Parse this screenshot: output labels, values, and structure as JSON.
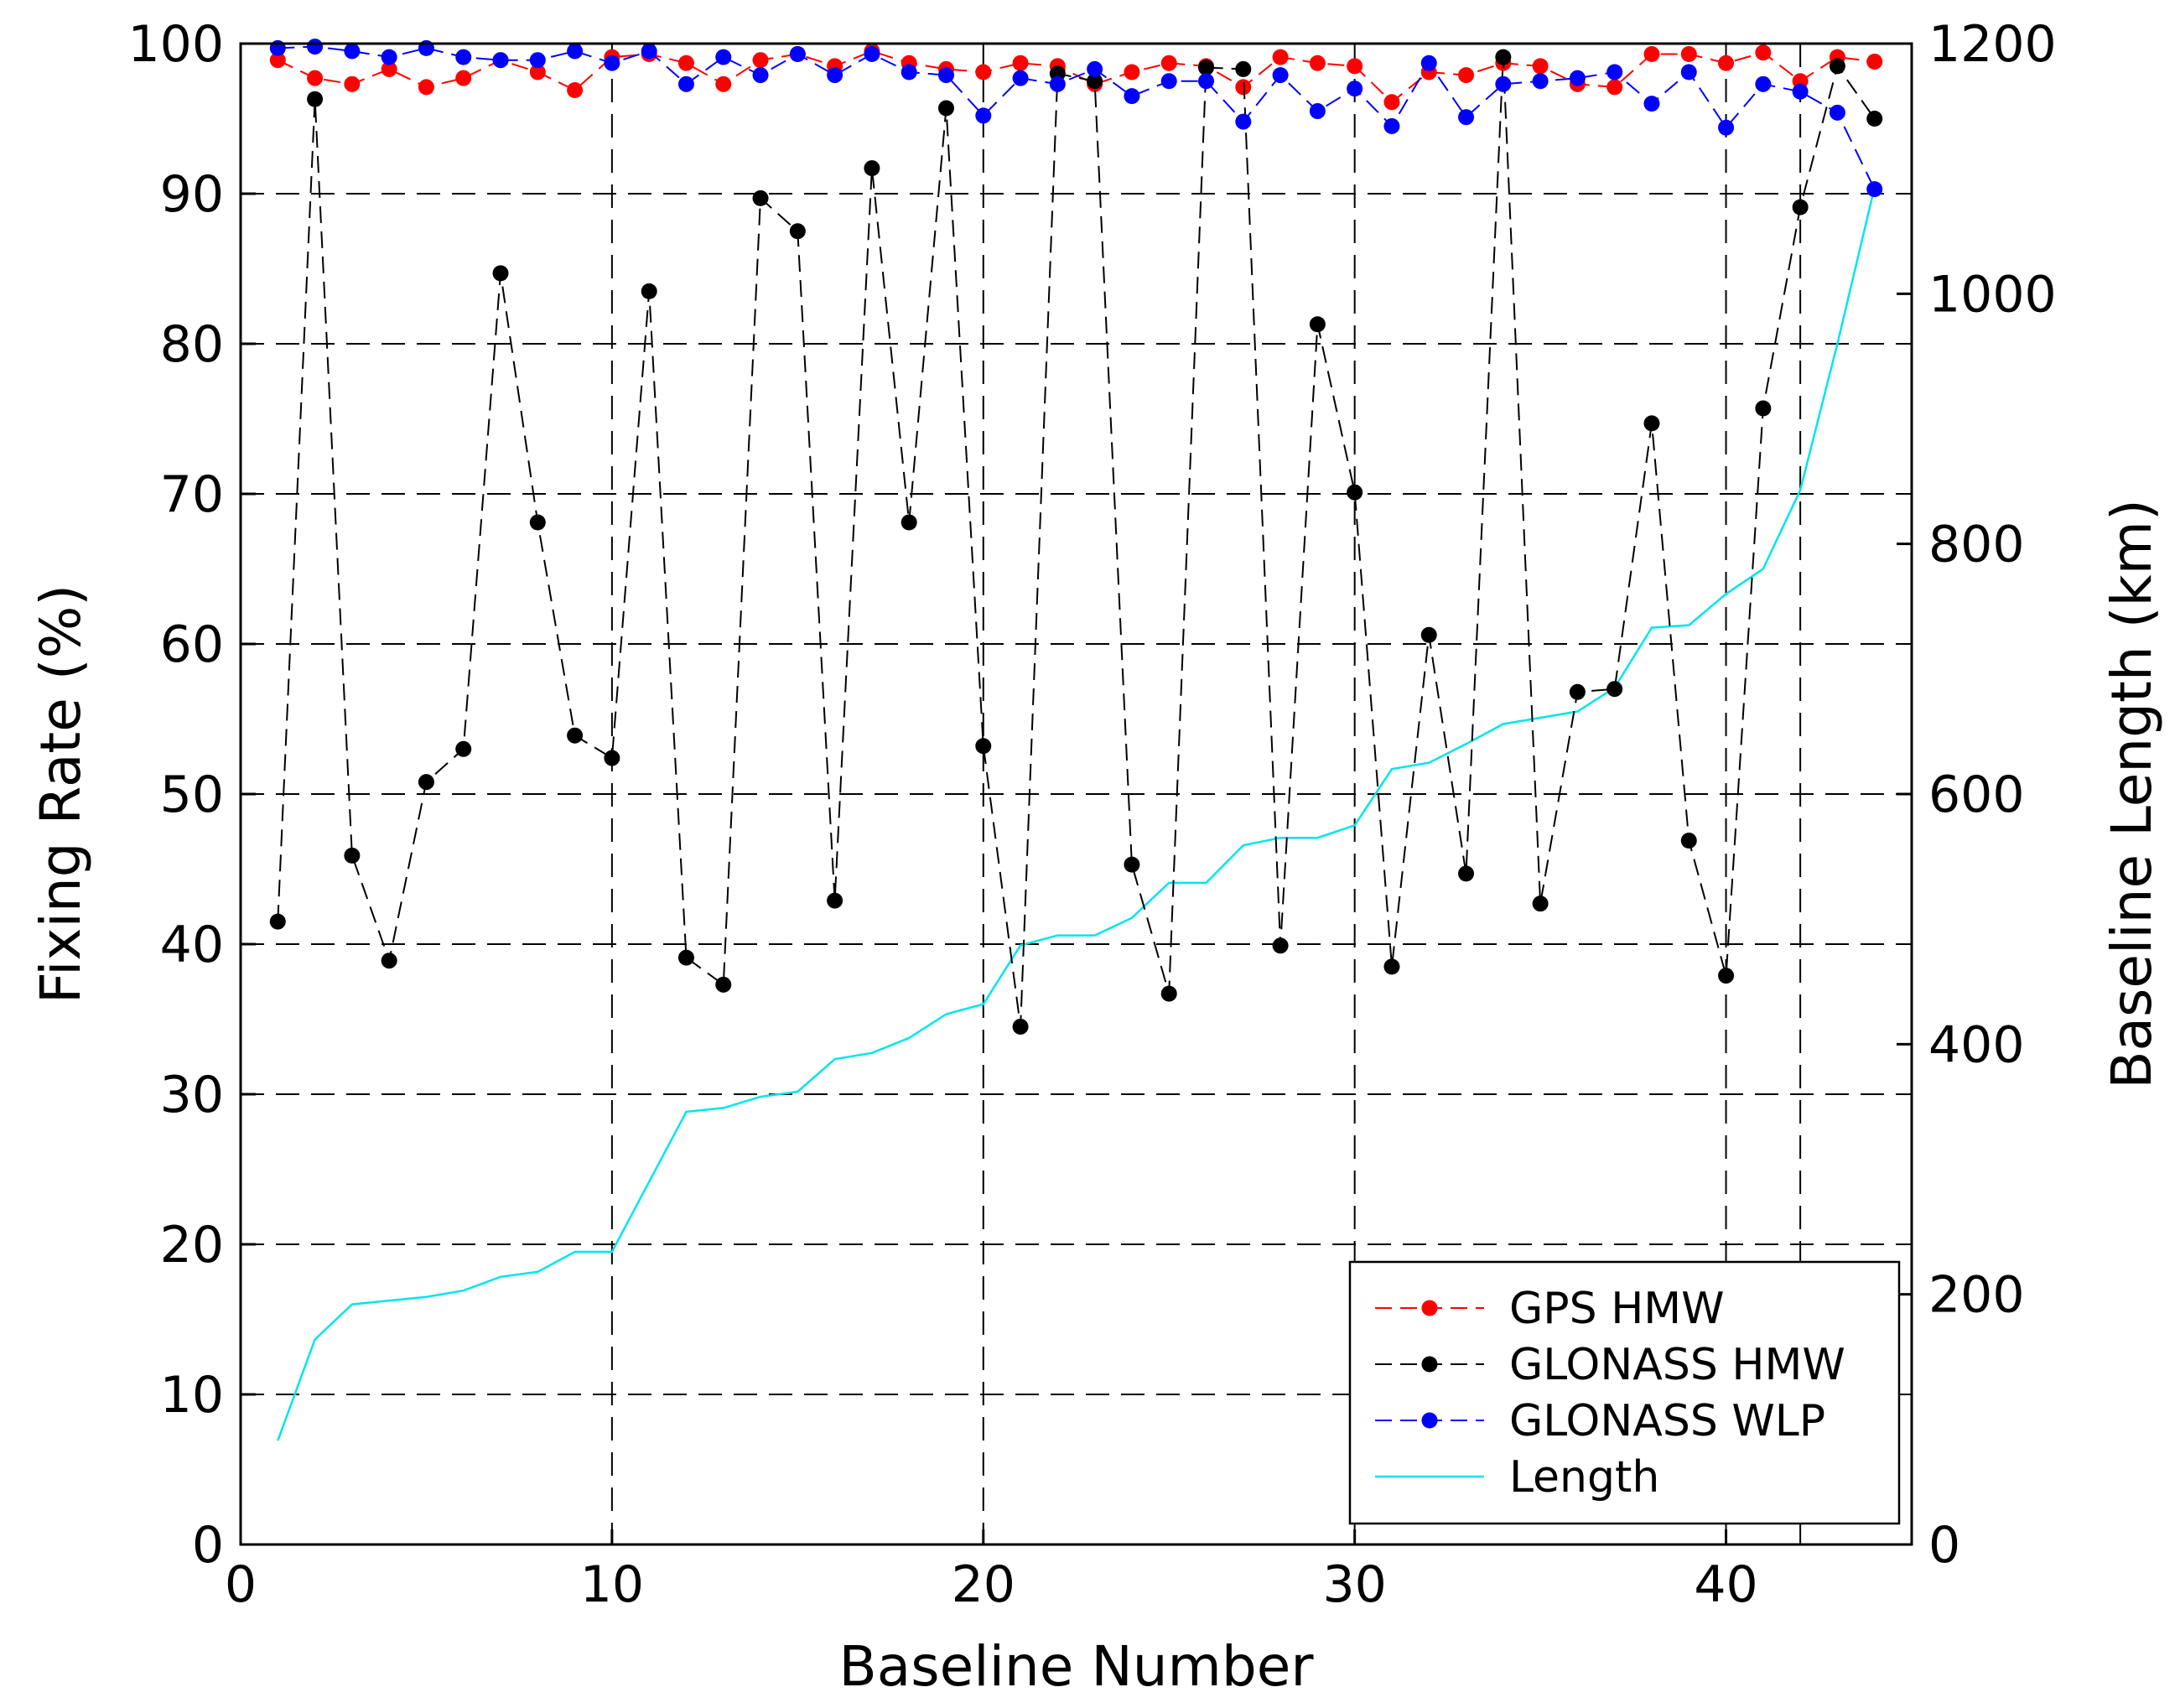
{
  "chart_data": {
    "type": "line",
    "title": "",
    "xlabel": "Baseline Number",
    "ylabel": "Fixing Rate (%)",
    "y2label": "Baseline Length (km)",
    "xlim": [
      0,
      45
    ],
    "ylim": [
      0,
      100
    ],
    "y2lim": [
      0,
      1200
    ],
    "xticks": [
      0,
      10,
      20,
      30,
      40
    ],
    "yticks": [
      0,
      10,
      20,
      30,
      40,
      50,
      60,
      70,
      80,
      90,
      100
    ],
    "y2ticks": [
      0,
      200,
      400,
      600,
      800,
      1000,
      1200
    ],
    "vertical_gridlines_at": [
      10,
      20,
      30,
      40,
      42
    ],
    "horizontal_grid": true,
    "legend_position": "bottom-right",
    "x": [
      1,
      2,
      3,
      4,
      5,
      6,
      7,
      8,
      9,
      10,
      11,
      12,
      13,
      14,
      15,
      16,
      17,
      18,
      19,
      20,
      21,
      22,
      23,
      24,
      25,
      26,
      27,
      28,
      29,
      30,
      31,
      32,
      33,
      34,
      35,
      36,
      37,
      38,
      39,
      40,
      41,
      42,
      43,
      44
    ],
    "series": [
      {
        "name": "GPS HMW",
        "axis": "left",
        "color": "#ff0000",
        "style": "dashed-marker",
        "values": [
          98.9,
          97.7,
          97.3,
          98.3,
          97.1,
          97.7,
          98.9,
          98.1,
          96.9,
          99.1,
          99.3,
          98.7,
          97.3,
          98.9,
          99.3,
          98.5,
          99.5,
          98.7,
          98.3,
          98.1,
          98.7,
          98.5,
          97.3,
          98.1,
          98.7,
          98.5,
          97.1,
          99.1,
          98.7,
          98.5,
          96.1,
          98.1,
          97.9,
          98.7,
          98.5,
          97.3,
          97.1,
          99.3,
          99.3,
          98.7,
          99.4,
          97.5,
          99.1,
          98.8
        ]
      },
      {
        "name": "GLONASS HMW",
        "axis": "left",
        "color": "#000000",
        "style": "dashed-marker",
        "values": [
          41.5,
          96.3,
          45.9,
          38.9,
          50.8,
          53.0,
          84.7,
          68.1,
          53.9,
          52.4,
          83.5,
          39.1,
          37.3,
          89.7,
          87.5,
          42.9,
          91.7,
          68.1,
          95.7,
          53.2,
          34.5,
          98.0,
          97.5,
          45.3,
          36.7,
          98.4,
          98.3,
          39.9,
          81.3,
          70.1,
          38.5,
          60.6,
          44.7,
          99.1,
          42.7,
          56.8,
          57.0,
          74.7,
          46.9,
          37.9,
          75.7,
          89.1,
          98.5,
          95.0
        ]
      },
      {
        "name": "GLONASS WLP",
        "axis": "left",
        "color": "#0000ff",
        "style": "dashed-marker",
        "values": [
          99.7,
          99.8,
          99.5,
          99.1,
          99.7,
          99.1,
          98.9,
          98.9,
          99.5,
          98.7,
          99.5,
          97.3,
          99.1,
          97.9,
          99.3,
          97.9,
          99.3,
          98.1,
          97.9,
          95.2,
          97.7,
          97.3,
          98.3,
          96.5,
          97.5,
          97.5,
          94.8,
          97.9,
          95.5,
          97.0,
          94.5,
          98.7,
          95.1,
          97.3,
          97.5,
          97.7,
          98.1,
          96.0,
          98.1,
          94.4,
          97.3,
          96.8,
          95.4,
          90.3
        ]
      },
      {
        "name": "Length",
        "axis": "right",
        "color": "#00e5ee",
        "style": "solid-line",
        "values": [
          83,
          164,
          192,
          195,
          198,
          203,
          214,
          218,
          234,
          234,
          290,
          346,
          349,
          358,
          362,
          388,
          393,
          405,
          424,
          432,
          479,
          487,
          487,
          501,
          529,
          529,
          559,
          565,
          565,
          575,
          620,
          625,
          640,
          656,
          661,
          666,
          685,
          733,
          735,
          760,
          780,
          843,
          960,
          1085
        ]
      }
    ]
  }
}
